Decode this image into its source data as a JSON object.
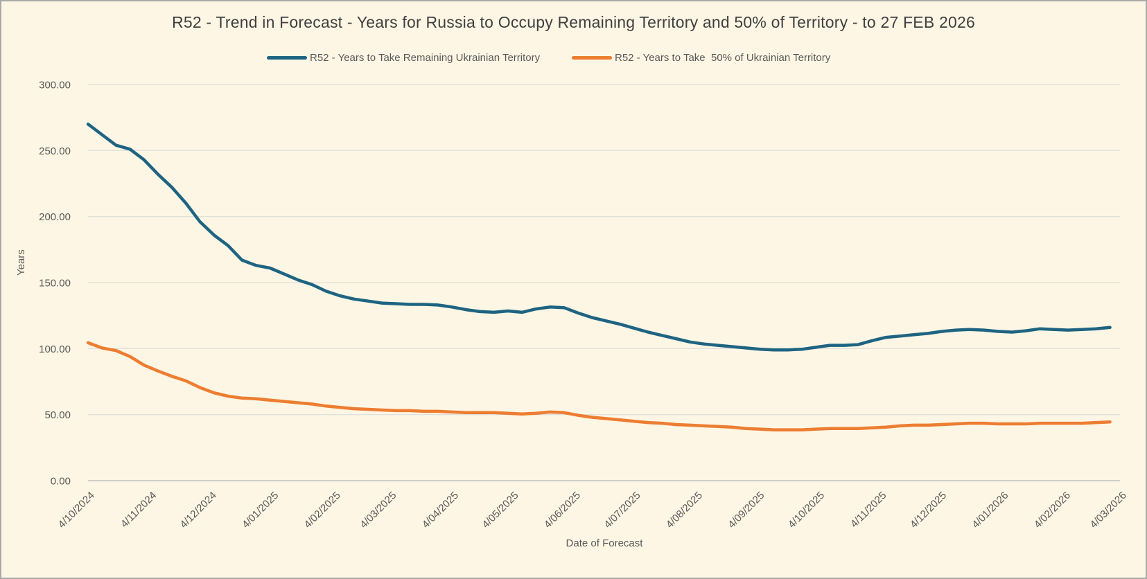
{
  "title": "R52 - Trend in Forecast - Years for Russia to Occupy Remaining Territory and 50% of Territory - to 27 FEB 2026",
  "legend": [
    {
      "label": "R52 - Years to Take Remaining Ukrainian Territory",
      "color": "#1e6482"
    },
    {
      "label": "R52 - Years to Take  50% of Ukrainian Territory",
      "color": "#ed7d31"
    }
  ],
  "colors": {
    "background": "#fdf6e4",
    "series_remaining": "#1e6482",
    "series_half": "#ed7d31",
    "gridline": "#d9d9d9",
    "axis_text": "#595959",
    "title_text": "#404040"
  },
  "chart_data": {
    "type": "line",
    "title": "R52 - Trend in Forecast - Years for Russia to Occupy Remaining Territory and 50% of Territory - to 27 FEB 2026",
    "xlabel": "Date of Forecast",
    "ylabel": "Years",
    "ylim": [
      0,
      300
    ],
    "grid": true,
    "legend_position": "top",
    "y_ticks": [
      {
        "value": 300,
        "label": "300.00"
      },
      {
        "value": 250,
        "label": "250.00"
      },
      {
        "value": 200,
        "label": "200.00"
      },
      {
        "value": 150,
        "label": "150.00"
      },
      {
        "value": 100,
        "label": "100.00"
      },
      {
        "value": 50,
        "label": "50.00"
      },
      {
        "value": 0,
        "label": "0.00"
      }
    ],
    "x_axis_day_range": [
      0,
      516
    ],
    "x_ticks": [
      {
        "day": 0,
        "label": "4/10/2024"
      },
      {
        "day": 31,
        "label": "4/11/2024"
      },
      {
        "day": 61,
        "label": "4/12/2024"
      },
      {
        "day": 92,
        "label": "4/01/2025"
      },
      {
        "day": 123,
        "label": "4/02/2025"
      },
      {
        "day": 151,
        "label": "4/03/2025"
      },
      {
        "day": 182,
        "label": "4/04/2025"
      },
      {
        "day": 212,
        "label": "4/05/2025"
      },
      {
        "day": 243,
        "label": "4/06/2025"
      },
      {
        "day": 273,
        "label": "4/07/2025"
      },
      {
        "day": 304,
        "label": "4/08/2025"
      },
      {
        "day": 335,
        "label": "4/09/2025"
      },
      {
        "day": 365,
        "label": "4/10/2025"
      },
      {
        "day": 396,
        "label": "4/11/2025"
      },
      {
        "day": 426,
        "label": "4/12/2025"
      },
      {
        "day": 457,
        "label": "4/01/2026"
      },
      {
        "day": 488,
        "label": "4/02/2026"
      },
      {
        "day": 516,
        "label": "4/03/2026"
      }
    ],
    "x_interval": "weekly",
    "x_step_days": 7,
    "series": [
      {
        "name": "R52 - Years to Take Remaining Ukrainian Territory",
        "color": "#1e6482",
        "values": [
          270,
          262,
          254,
          251,
          243,
          232,
          222,
          210,
          196,
          186,
          178,
          167,
          163,
          161,
          156.5,
          152,
          148.5,
          143.5,
          140,
          137.5,
          136,
          134.5,
          134,
          133.5,
          133.5,
          133,
          131.5,
          129.5,
          128,
          127.5,
          128.5,
          127.5,
          130,
          131.5,
          131,
          127,
          123.5,
          121,
          118.5,
          115.5,
          112.5,
          110,
          107.5,
          105,
          103.5,
          102.5,
          101.5,
          100.5,
          99.5,
          99,
          99,
          99.5,
          101,
          102.5,
          102.5,
          103,
          106,
          108.5,
          109.5,
          110.5,
          111.5,
          113,
          114,
          114.5,
          114,
          113,
          112.5,
          113.5,
          115,
          114.5,
          114,
          114.5,
          115,
          116
        ]
      },
      {
        "name": "R52 - Years to Take  50% of Ukrainian Territory",
        "color": "#ed7d31",
        "values": [
          104.5,
          100.5,
          98.5,
          94,
          87.5,
          83,
          79,
          75.5,
          70.5,
          66.5,
          64,
          62.5,
          62,
          61,
          60,
          59,
          58,
          56.5,
          55.5,
          54.5,
          54,
          53.5,
          53,
          53,
          52.5,
          52.5,
          52,
          51.5,
          51.5,
          51.5,
          51,
          50.5,
          51,
          52,
          51.5,
          49.5,
          48,
          47,
          46,
          45,
          44,
          43.5,
          42.5,
          42,
          41.5,
          41,
          40.5,
          39.5,
          39,
          38.5,
          38.5,
          38.5,
          39,
          39.5,
          39.5,
          39.5,
          40,
          40.5,
          41.5,
          42,
          42,
          42.5,
          43,
          43.5,
          43.5,
          43,
          43,
          43,
          43.5,
          43.5,
          43.5,
          43.5,
          44,
          44.5
        ]
      }
    ]
  }
}
